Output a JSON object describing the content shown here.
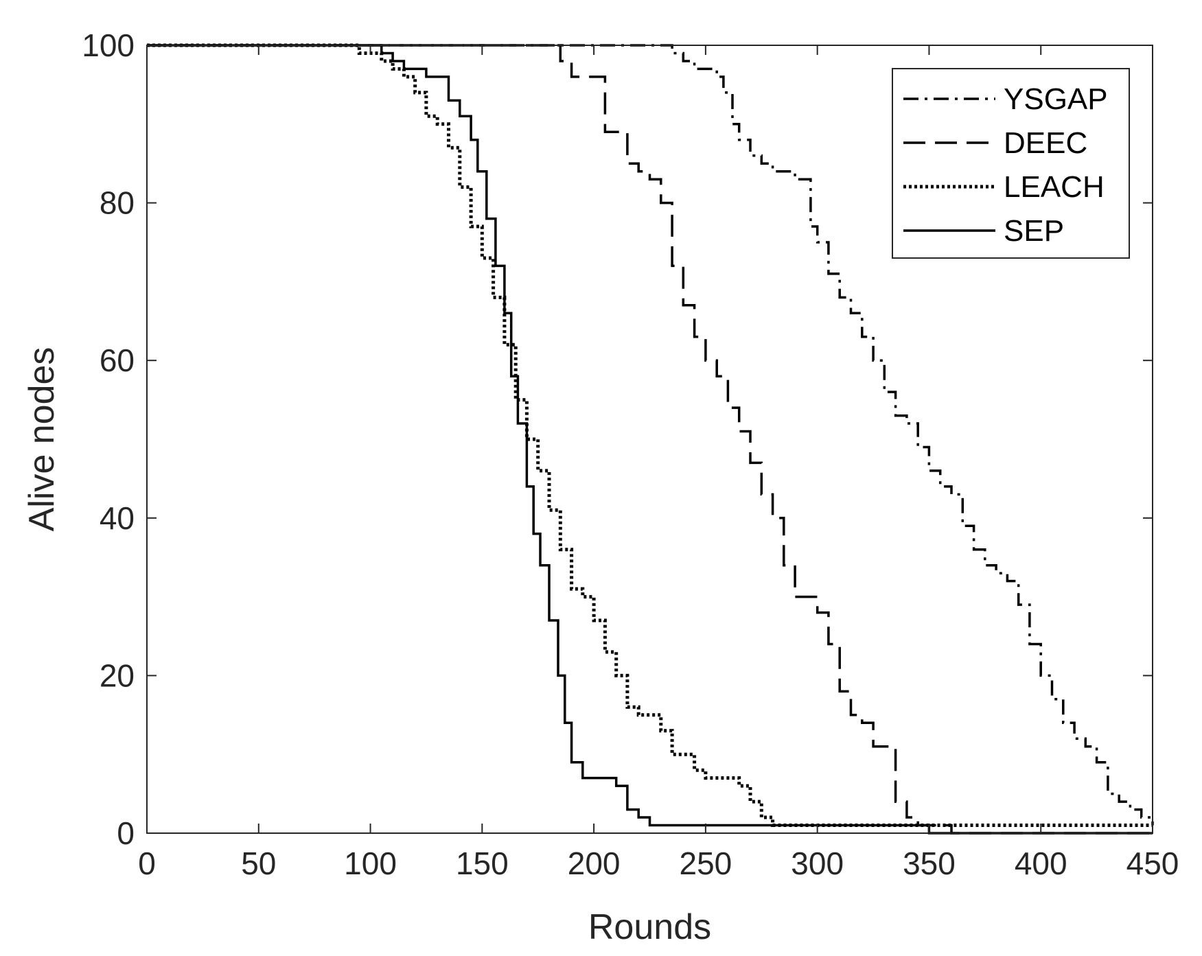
{
  "chart_data": {
    "type": "line",
    "title": "",
    "xlabel": "Rounds",
    "ylabel": "Alive nodes",
    "xlim": [
      0,
      450
    ],
    "ylim": [
      0,
      100
    ],
    "xticks": [
      0,
      50,
      100,
      150,
      200,
      250,
      300,
      350,
      400,
      450
    ],
    "yticks": [
      0,
      20,
      40,
      60,
      80,
      100
    ],
    "grid": false,
    "legend_position": "top-right",
    "series": [
      {
        "name": "YSGAP",
        "style": "dash-dot",
        "x": [
          0,
          230,
          235,
          240,
          245,
          250,
          255,
          258,
          262,
          265,
          270,
          275,
          280,
          285,
          290,
          295,
          297,
          300,
          305,
          310,
          315,
          320,
          325,
          330,
          335,
          340,
          345,
          350,
          355,
          360,
          365,
          370,
          375,
          380,
          385,
          390,
          395,
          400,
          405,
          410,
          415,
          420,
          425,
          430,
          435,
          440,
          445,
          450
        ],
        "y": [
          100,
          100,
          99,
          98,
          97,
          97,
          96,
          94,
          90,
          88,
          86,
          85,
          84,
          84,
          83,
          83,
          77,
          75,
          71,
          68,
          66,
          63,
          60,
          56,
          53,
          52,
          49,
          46,
          44,
          43,
          39,
          36,
          34,
          33,
          32,
          29,
          24,
          20,
          17,
          14,
          12,
          11,
          9,
          5,
          4,
          3,
          2,
          1
        ]
      },
      {
        "name": "DEEC",
        "style": "dashed",
        "x": [
          0,
          182,
          185,
          190,
          195,
          200,
          205,
          210,
          215,
          220,
          225,
          230,
          235,
          240,
          245,
          250,
          255,
          260,
          265,
          270,
          275,
          280,
          285,
          290,
          295,
          300,
          305,
          310,
          315,
          320,
          325,
          330,
          335,
          340,
          345,
          350,
          355,
          360,
          450
        ],
        "y": [
          100,
          100,
          98,
          96,
          96,
          96,
          89,
          89,
          85,
          84,
          83,
          80,
          72,
          67,
          63,
          60,
          58,
          54,
          51,
          47,
          43,
          40,
          34,
          30,
          30,
          28,
          24,
          18,
          15,
          14,
          11,
          11,
          4,
          2,
          1,
          1,
          1,
          0,
          0
        ]
      },
      {
        "name": "LEACH",
        "style": "dotted",
        "x": [
          0,
          86,
          95,
          100,
          105,
          110,
          115,
          120,
          125,
          130,
          135,
          140,
          145,
          150,
          155,
          160,
          165,
          170,
          175,
          180,
          185,
          190,
          195,
          200,
          205,
          210,
          215,
          220,
          225,
          230,
          235,
          240,
          245,
          250,
          255,
          260,
          265,
          270,
          275,
          280,
          290,
          300,
          350,
          450
        ],
        "y": [
          100,
          100,
          99,
          99,
          98,
          97,
          96,
          94,
          91,
          90,
          87,
          82,
          77,
          73,
          68,
          62,
          55,
          50,
          46,
          41,
          36,
          31,
          30,
          27,
          23,
          20,
          16,
          15,
          15,
          13,
          10,
          10,
          8,
          7,
          7,
          7,
          6,
          4,
          2,
          1,
          1,
          1,
          1,
          1
        ]
      },
      {
        "name": "SEP",
        "style": "solid",
        "x": [
          0,
          100,
          105,
          110,
          115,
          120,
          125,
          130,
          135,
          140,
          145,
          148,
          152,
          156,
          160,
          163,
          166,
          170,
          173,
          176,
          180,
          184,
          187,
          190,
          195,
          200,
          205,
          210,
          215,
          220,
          225,
          230,
          300,
          348,
          350,
          450
        ],
        "y": [
          100,
          100,
          99,
          98,
          97,
          97,
          96,
          96,
          93,
          91,
          88,
          84,
          78,
          72,
          66,
          58,
          52,
          44,
          38,
          34,
          27,
          20,
          14,
          9,
          7,
          7,
          7,
          6,
          3,
          2,
          1,
          1,
          1,
          1,
          0,
          0
        ]
      }
    ]
  }
}
